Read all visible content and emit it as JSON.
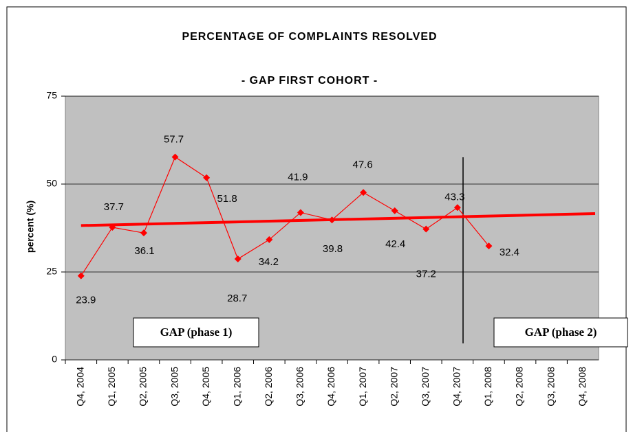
{
  "chart_data": {
    "type": "line",
    "title": "PERCENTAGE OF COMPLAINTS RESOLVED",
    "subtitle": "- GAP FIRST COHORT -",
    "y_label": "percent  (%)",
    "categories": [
      "Q4, 2004",
      "Q1, 2005",
      "Q2, 2005",
      "Q3, 2005",
      "Q4, 2005",
      "Q1, 2006",
      "Q2, 2006",
      "Q3, 2006",
      "Q4, 2006",
      "Q1, 2007",
      "Q2, 2007",
      "Q3, 2007",
      "Q4, 2007",
      "Q1, 2008",
      "Q2, 2008",
      "Q3, 2008",
      "Q4, 2008"
    ],
    "series": [
      {
        "color": "#ff0000",
        "values": [
          23.9,
          37.7,
          36.1,
          57.7,
          51.8,
          28.7,
          34.2,
          41.9,
          39.8,
          47.6,
          42.4,
          37.2,
          43.3,
          32.4,
          null,
          null,
          null
        ]
      }
    ],
    "trend": {
      "color": "#ff0000",
      "values": [
        38.2,
        41.6
      ]
    },
    "annotations": [
      "GAP (phase 1)",
      "GAP (phase 2)"
    ],
    "ylim": [
      0,
      75
    ],
    "yticks": [
      0,
      25,
      50,
      75
    ],
    "grid": true,
    "plot_background": "#c0c0c0"
  }
}
